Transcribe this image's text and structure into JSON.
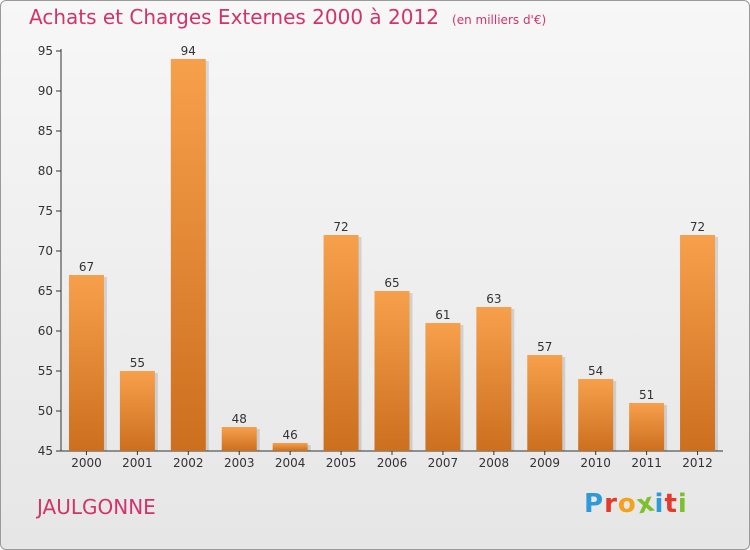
{
  "title": "Achats et Charges Externes 2000 à 2012",
  "unit": "(en milliers d'€)",
  "commune": "JAULGONNE",
  "logo": {
    "letters": [
      "P",
      "r",
      "o",
      "x",
      "i",
      "t",
      "i"
    ],
    "colors": [
      "#2f9bd6",
      "#e23a2b",
      "#f3a21b",
      "#7cbf2f",
      "#2f9bd6",
      "#e23a2b",
      "#7cbf2f"
    ]
  },
  "colors": {
    "title": "#d1336b",
    "bar_top": "#f7a04c",
    "bar_bottom": "#cc6f1e"
  },
  "chart_data": {
    "type": "bar",
    "categories": [
      "2000",
      "2001",
      "2002",
      "2003",
      "2004",
      "2005",
      "2006",
      "2007",
      "2008",
      "2009",
      "2010",
      "2011",
      "2012"
    ],
    "values": [
      67,
      55,
      94,
      48,
      46,
      72,
      65,
      61,
      63,
      57,
      54,
      51,
      72
    ],
    "ylim": [
      45,
      95
    ],
    "yticks": [
      45,
      50,
      55,
      60,
      65,
      70,
      75,
      80,
      85,
      90,
      95
    ],
    "grid": false,
    "data_labels": true
  }
}
